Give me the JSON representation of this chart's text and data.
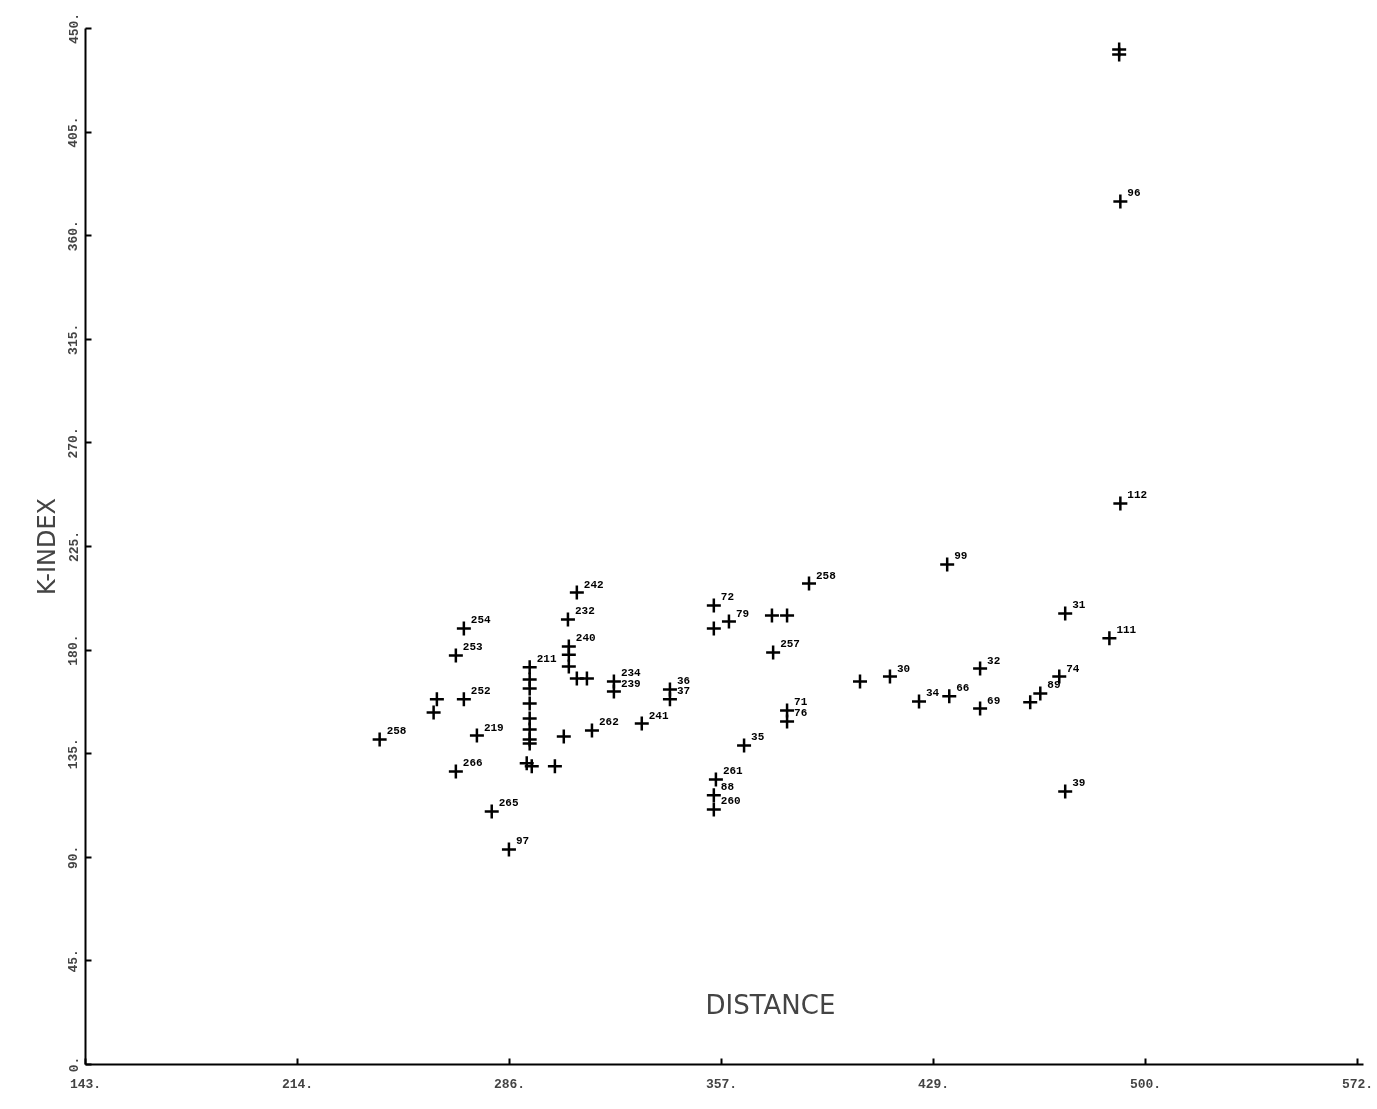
{
  "chart_data": {
    "type": "scatter",
    "xlabel": "DISTANCE",
    "ylabel": "K-INDEX",
    "xlim": [
      143,
      574
    ],
    "ylim": [
      0,
      450
    ],
    "xticks": [
      {
        "value": 143,
        "label": "143."
      },
      {
        "value": 214.5,
        "label": "214."
      },
      {
        "value": 286,
        "label": "286."
      },
      {
        "value": 357.5,
        "label": "357."
      },
      {
        "value": 429,
        "label": "429."
      },
      {
        "value": 500.5,
        "label": "500."
      },
      {
        "value": 572,
        "label": "572."
      }
    ],
    "yticks": [
      {
        "value": 0,
        "label": "0."
      },
      {
        "value": 45,
        "label": "45."
      },
      {
        "value": 90,
        "label": "90."
      },
      {
        "value": 135,
        "label": "135."
      },
      {
        "value": 180,
        "label": "180."
      },
      {
        "value": 225,
        "label": "225."
      },
      {
        "value": 270,
        "label": "270."
      },
      {
        "value": 315,
        "label": "315."
      },
      {
        "value": 360,
        "label": "360."
      },
      {
        "value": 405,
        "label": "405."
      },
      {
        "value": 450,
        "label": "450."
      }
    ],
    "grid": false,
    "marker": "cross",
    "series": [
      {
        "color": "#000000",
        "x": [
          242.2,
          270.6,
          267.9,
          261.5,
          260.4,
          270.6,
          275.0,
          267.9,
          280.0,
          285.8,
          308.7,
          305.7,
          306.0,
          306.0,
          306.0,
          292.8,
          292.8,
          292.8,
          292.8,
          292.8,
          292.8,
          292.8,
          292.8,
          308.7,
          312.1,
          321.2,
          321.2,
          313.8,
          304.3,
          330.6,
          340.1,
          340.1,
          291.8,
          293.5,
          301.3,
          387.0,
          354.9,
          354.9,
          360.0,
          374.5,
          379.6,
          374.9,
          379.6,
          379.6,
          365.1,
          355.6,
          354.9,
          354.9,
          404.2,
          414.3,
          424.1,
          434.3,
          444.7,
          444.7,
          461.6,
          465.0,
          471.4,
          473.4,
          488.3,
          492.0,
          433.6,
          473.4,
          491.6,
          491.6,
          492.0
        ],
        "values": [
          141.2,
          189.4,
          177.7,
          158.6,
          152.9,
          158.6,
          142.9,
          127.3,
          109.9,
          93.4,
          205.0,
          193.3,
          181.6,
          178.0,
          172.9,
          172.5,
          167.2,
          163.3,
          156.8,
          150.3,
          145.5,
          141.2,
          139.4,
          167.7,
          167.7,
          166.4,
          162.0,
          145.1,
          142.5,
          148.1,
          162.9,
          158.6,
          130.8,
          129.5,
          129.5,
          208.9,
          199.4,
          189.4,
          192.4,
          195.0,
          195.0,
          179.0,
          153.8,
          149.0,
          138.6,
          123.8,
          116.9,
          110.8,
          166.4,
          168.5,
          157.7,
          159.9,
          172.0,
          154.6,
          157.3,
          161.2,
          168.5,
          195.9,
          185.1,
          243.7,
          217.2,
          118.6,
          440.9,
          438.7,
          374.9
        ]
      }
    ],
    "annotations": [
      {
        "text": "258",
        "x": 242.2,
        "y": 141.2
      },
      {
        "text": "254",
        "x": 270.6,
        "y": 189.4
      },
      {
        "text": "253",
        "x": 267.9,
        "y": 177.7
      },
      {
        "text": "252",
        "x": 270.6,
        "y": 158.6
      },
      {
        "text": "219",
        "x": 275.0,
        "y": 142.9
      },
      {
        "text": "266",
        "x": 267.9,
        "y": 127.3
      },
      {
        "text": "265",
        "x": 280.0,
        "y": 109.9
      },
      {
        "text": "97",
        "x": 285.8,
        "y": 93.4
      },
      {
        "text": "242",
        "x": 308.7,
        "y": 205.0
      },
      {
        "text": "232",
        "x": 305.7,
        "y": 193.3
      },
      {
        "text": "240",
        "x": 306.0,
        "y": 181.6
      },
      {
        "text": "211",
        "x": 292.8,
        "y": 172.5
      },
      {
        "text": "234",
        "x": 321.2,
        "y": 166.4
      },
      {
        "text": "239",
        "x": 321.2,
        "y": 162.0
      },
      {
        "text": "262",
        "x": 313.8,
        "y": 145.1
      },
      {
        "text": "241",
        "x": 330.6,
        "y": 148.1
      },
      {
        "text": "36",
        "x": 340.1,
        "y": 162.9
      },
      {
        "text": "37",
        "x": 340.1,
        "y": 158.6
      },
      {
        "text": "258",
        "x": 387.0,
        "y": 208.9
      },
      {
        "text": "72",
        "x": 354.9,
        "y": 199.4
      },
      {
        "text": "79",
        "x": 360.0,
        "y": 192.4
      },
      {
        "text": "257",
        "x": 374.9,
        "y": 179.0
      },
      {
        "text": "71",
        "x": 379.6,
        "y": 153.8
      },
      {
        "text": "76",
        "x": 379.6,
        "y": 149.0
      },
      {
        "text": "35",
        "x": 365.1,
        "y": 138.6
      },
      {
        "text": "261",
        "x": 355.6,
        "y": 123.8
      },
      {
        "text": "88",
        "x": 354.9,
        "y": 116.9
      },
      {
        "text": "260",
        "x": 354.9,
        "y": 110.8
      },
      {
        "text": "30",
        "x": 414.3,
        "y": 168.5
      },
      {
        "text": "34",
        "x": 424.1,
        "y": 157.7
      },
      {
        "text": "66",
        "x": 434.3,
        "y": 159.9
      },
      {
        "text": "32",
        "x": 444.7,
        "y": 172.0
      },
      {
        "text": "69",
        "x": 444.7,
        "y": 154.6
      },
      {
        "text": "89",
        "x": 465.0,
        "y": 161.2
      },
      {
        "text": "74",
        "x": 471.4,
        "y": 168.5
      },
      {
        "text": "31",
        "x": 473.4,
        "y": 195.9
      },
      {
        "text": "111",
        "x": 488.3,
        "y": 185.1
      },
      {
        "text": "112",
        "x": 492.0,
        "y": 243.7
      },
      {
        "text": "99",
        "x": 433.6,
        "y": 217.2
      },
      {
        "text": "39",
        "x": 473.4,
        "y": 118.6
      },
      {
        "text": "96",
        "x": 492.0,
        "y": 374.9
      }
    ]
  }
}
